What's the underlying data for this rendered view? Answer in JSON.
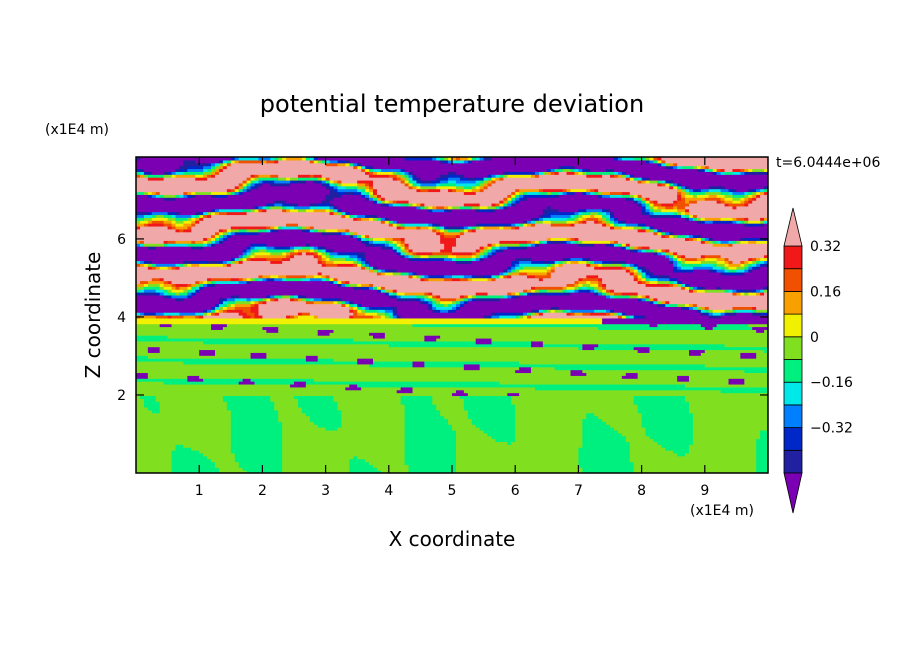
{
  "chart_data": {
    "type": "heatmap",
    "title": "potential temperature deviation",
    "xlabel": "X coordinate",
    "ylabel": "Z coordinate",
    "x_unit": "(x1E4 m)",
    "y_unit": "(x1E4 m)",
    "time_label": "t=6.0444e+06",
    "xlim": [
      0,
      10
    ],
    "ylim": [
      0,
      8.1
    ],
    "x_ticks": [
      1,
      2,
      3,
      4,
      5,
      6,
      7,
      8,
      9
    ],
    "y_ticks": [
      2,
      4,
      6
    ],
    "colorbar": {
      "levels": [
        -0.48,
        -0.4,
        -0.32,
        -0.24,
        -0.16,
        -0.08,
        0,
        0.08,
        0.16,
        0.24,
        0.32,
        0.4,
        0.48
      ],
      "labeled_levels": [
        "0.32",
        "0.16",
        "0",
        "−0.16",
        "−0.32"
      ],
      "colors": [
        "#7b00b4",
        "#2020a0",
        "#0028c8",
        "#0080ff",
        "#00e8e8",
        "#00f080",
        "#80e020",
        "#f0f000",
        "#f8a000",
        "#f05000",
        "#f01818",
        "#f0a8a8"
      ],
      "extend": "both"
    },
    "layers": [
      {
        "z_range": [
          0,
          2.0
        ],
        "dominant_value": -0.04,
        "secondary_value": 0.04,
        "description_level": "lower"
      },
      {
        "z_range": [
          2.0,
          3.8
        ],
        "dominant_value": 0.04,
        "secondary_value": -0.04
      },
      {
        "z_range": [
          3.8,
          3.95
        ],
        "dominant_value": 0.12
      },
      {
        "z_range": [
          3.95,
          8.1
        ],
        "dominant_value": 0.44,
        "secondary_value": -0.44
      }
    ]
  }
}
